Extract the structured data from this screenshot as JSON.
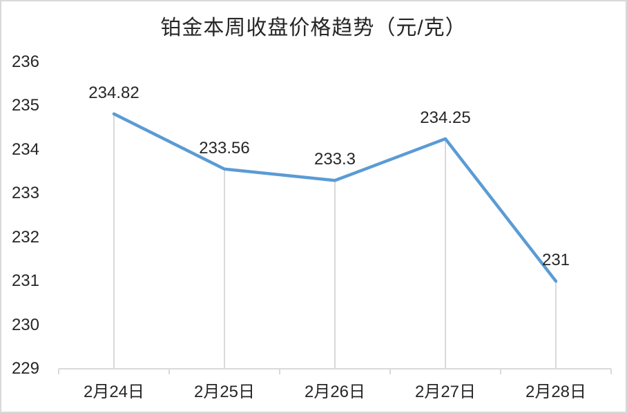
{
  "chart_data": {
    "type": "line",
    "title": "铂金本周收盘价格趋势（元/克）",
    "categories": [
      "2月24日",
      "2月25日",
      "2月26日",
      "2月27日",
      "2月28日"
    ],
    "series": [
      {
        "values": [
          234.82,
          233.56,
          233.3,
          234.25,
          231
        ]
      }
    ],
    "data_labels": [
      "234.82",
      "233.56",
      "233.3",
      "234.25",
      "231"
    ],
    "ylim": [
      229,
      236
    ],
    "ytick_step": 1,
    "yticks": [
      "229",
      "230",
      "231",
      "232",
      "233",
      "234",
      "235",
      "236"
    ],
    "legend": "none",
    "grid": "vertical-drop-lines-only",
    "data_label_position": "above",
    "colors": {
      "line": "#5B9BD5",
      "grid": "#D9D9D9",
      "axis": "#D9D9D9",
      "text": "#262626",
      "background": "#FFFFFF",
      "frame_border": "#D9D9D9"
    }
  }
}
